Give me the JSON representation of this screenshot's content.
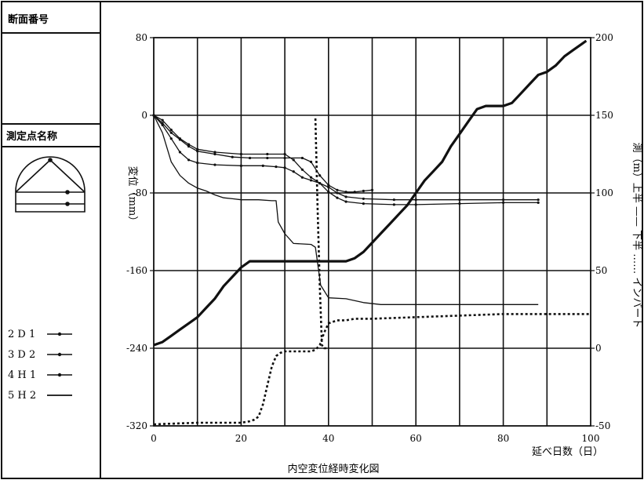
{
  "panel": {
    "section_label": "断面番号",
    "points_label": "測定点名称"
  },
  "legend": [
    {
      "label": "2 D 1",
      "marker": "dot"
    },
    {
      "label": "3 D 2",
      "marker": "dot"
    },
    {
      "label": "4 H 1",
      "marker": "dot"
    },
    {
      "label": "5 H 2",
      "marker": "none"
    }
  ],
  "chart_data": {
    "type": "line",
    "title": "内空変位経時変化図",
    "xlabel": "延べ日数（日）",
    "ylabel": "変位（mm）",
    "y2label": "測（m）上半 —— 下半 …… インバート",
    "xlim": [
      0,
      100
    ],
    "ylim": [
      -320,
      80
    ],
    "y2lim": [
      -50,
      200
    ],
    "x_ticks": [
      0,
      20,
      40,
      60,
      80,
      100
    ],
    "y_ticks": [
      80,
      0,
      -80,
      -160,
      -240,
      -320
    ],
    "y2_ticks": [
      200,
      150,
      100,
      50,
      0,
      -50
    ],
    "grid": true,
    "series": [
      {
        "name": "2 D 1",
        "axis": "left",
        "style": "solid-dots",
        "points": [
          [
            0,
            0
          ],
          [
            2,
            -8
          ],
          [
            4,
            -18
          ],
          [
            6,
            -25
          ],
          [
            8,
            -32
          ],
          [
            10,
            -37
          ],
          [
            14,
            -40
          ],
          [
            18,
            -43
          ],
          [
            22,
            -44
          ],
          [
            26,
            -44
          ],
          [
            30,
            -44
          ],
          [
            34,
            -44
          ],
          [
            36,
            -48
          ],
          [
            38,
            -62
          ],
          [
            40,
            -72
          ],
          [
            42,
            -77
          ],
          [
            44,
            -79
          ],
          [
            46,
            -79
          ],
          [
            48,
            -78
          ],
          [
            50,
            -77
          ]
        ]
      },
      {
        "name": "3 D 2",
        "axis": "left",
        "style": "solid-dots",
        "points": [
          [
            0,
            0
          ],
          [
            2,
            -10
          ],
          [
            4,
            -24
          ],
          [
            6,
            -38
          ],
          [
            8,
            -46
          ],
          [
            10,
            -49
          ],
          [
            14,
            -51
          ],
          [
            20,
            -52
          ],
          [
            25,
            -52
          ],
          [
            28,
            -53
          ],
          [
            30,
            -54
          ],
          [
            32,
            -58
          ],
          [
            34,
            -64
          ],
          [
            36,
            -67
          ],
          [
            38,
            -70
          ],
          [
            40,
            -79
          ],
          [
            42,
            -85
          ],
          [
            44,
            -89
          ],
          [
            48,
            -91
          ],
          [
            55,
            -92
          ],
          [
            60,
            -92
          ],
          [
            70,
            -91
          ],
          [
            80,
            -90
          ],
          [
            88,
            -90
          ]
        ]
      },
      {
        "name": "4 H 1",
        "axis": "left",
        "style": "solid-dots",
        "points": [
          [
            0,
            0
          ],
          [
            2,
            -5
          ],
          [
            4,
            -15
          ],
          [
            6,
            -24
          ],
          [
            8,
            -30
          ],
          [
            10,
            -35
          ],
          [
            14,
            -38
          ],
          [
            20,
            -40
          ],
          [
            26,
            -40
          ],
          [
            30,
            -40
          ],
          [
            32,
            -46
          ],
          [
            34,
            -56
          ],
          [
            36,
            -64
          ],
          [
            38,
            -70
          ],
          [
            40,
            -74
          ],
          [
            42,
            -80
          ],
          [
            44,
            -84
          ],
          [
            48,
            -86
          ],
          [
            55,
            -87
          ],
          [
            60,
            -87
          ],
          [
            70,
            -87
          ],
          [
            80,
            -87
          ],
          [
            88,
            -87
          ]
        ]
      },
      {
        "name": "5 H 2",
        "axis": "left",
        "style": "solid",
        "points": [
          [
            0,
            0
          ],
          [
            2,
            -18
          ],
          [
            4,
            -48
          ],
          [
            6,
            -62
          ],
          [
            8,
            -70
          ],
          [
            10,
            -75
          ],
          [
            12,
            -78
          ],
          [
            14,
            -82
          ],
          [
            16,
            -85
          ],
          [
            18,
            -86
          ],
          [
            20,
            -87
          ],
          [
            24,
            -87
          ],
          [
            27,
            -88
          ],
          [
            28,
            -88
          ],
          [
            28.5,
            -110
          ],
          [
            30,
            -122
          ],
          [
            32,
            -132
          ],
          [
            36,
            -133
          ],
          [
            37,
            -136
          ],
          [
            38.2,
            -175
          ],
          [
            40,
            -188
          ],
          [
            44,
            -189
          ],
          [
            48,
            -193
          ],
          [
            52,
            -195
          ],
          [
            60,
            -195
          ],
          [
            70,
            -195
          ],
          [
            80,
            -195
          ],
          [
            88,
            -195
          ]
        ]
      },
      {
        "name": "上半",
        "axis": "right",
        "style": "solid-bold",
        "points": [
          [
            0,
            2
          ],
          [
            2,
            4
          ],
          [
            4,
            8
          ],
          [
            6,
            12
          ],
          [
            8,
            16
          ],
          [
            10,
            20
          ],
          [
            12,
            26
          ],
          [
            14,
            32
          ],
          [
            16,
            40
          ],
          [
            18,
            46
          ],
          [
            20,
            52
          ],
          [
            22,
            56
          ],
          [
            24,
            56
          ],
          [
            26,
            56
          ],
          [
            28,
            56
          ],
          [
            30,
            56
          ],
          [
            32,
            56
          ],
          [
            34,
            56
          ],
          [
            36,
            56
          ],
          [
            38,
            56
          ],
          [
            40,
            56
          ],
          [
            42,
            56
          ],
          [
            44,
            56
          ],
          [
            46,
            58
          ],
          [
            48,
            62
          ],
          [
            50,
            68
          ],
          [
            52,
            74
          ],
          [
            54,
            80
          ],
          [
            56,
            86
          ],
          [
            58,
            92
          ],
          [
            60,
            100
          ],
          [
            62,
            108
          ],
          [
            64,
            114
          ],
          [
            66,
            120
          ],
          [
            68,
            130
          ],
          [
            70,
            138
          ],
          [
            72,
            146
          ],
          [
            74,
            154
          ],
          [
            76,
            156
          ],
          [
            78,
            156
          ],
          [
            80,
            156
          ],
          [
            82,
            158
          ],
          [
            84,
            164
          ],
          [
            86,
            170
          ],
          [
            88,
            176
          ],
          [
            90,
            178
          ],
          [
            92,
            182
          ],
          [
            94,
            188
          ],
          [
            96,
            192
          ],
          [
            98,
            196
          ],
          [
            99,
            198
          ]
        ]
      },
      {
        "name": "下半",
        "axis": "right",
        "style": "dotted-bold",
        "points": [
          [
            0,
            -49
          ],
          [
            10,
            -48
          ],
          [
            20,
            -48
          ],
          [
            22,
            -47
          ],
          [
            23,
            -46
          ],
          [
            24,
            -44
          ],
          [
            25,
            -36
          ],
          [
            26,
            -24
          ],
          [
            27,
            -12
          ],
          [
            28,
            -5
          ],
          [
            29,
            -3
          ],
          [
            30,
            -2
          ],
          [
            32,
            -2
          ],
          [
            34,
            -2
          ],
          [
            36,
            -2
          ],
          [
            37,
            -1
          ],
          [
            38,
            2
          ],
          [
            39,
            10
          ],
          [
            40,
            16
          ],
          [
            42,
            18
          ],
          [
            44,
            18
          ],
          [
            46,
            19
          ],
          [
            50,
            19
          ],
          [
            60,
            20
          ],
          [
            70,
            21
          ],
          [
            80,
            22
          ],
          [
            90,
            22
          ],
          [
            100,
            22
          ]
        ]
      },
      {
        "name": "インバート",
        "axis": "right",
        "style": "dotted-bold",
        "points": [
          [
            37,
            148
          ],
          [
            37.5,
            90
          ],
          [
            38,
            40
          ],
          [
            38.5,
            2
          ],
          [
            39,
            0
          ],
          [
            40,
            0
          ]
        ]
      }
    ]
  }
}
